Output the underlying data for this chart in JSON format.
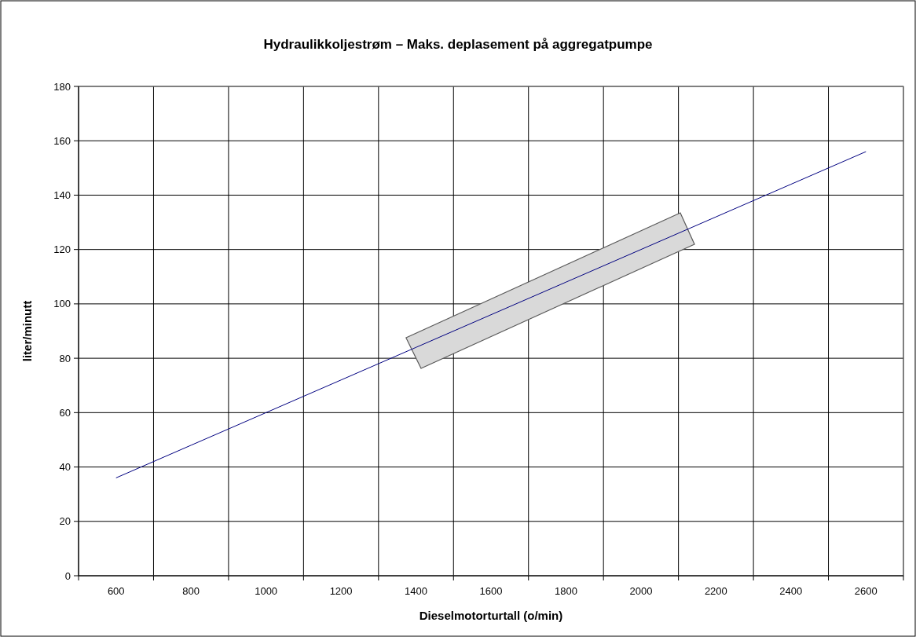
{
  "chart_data": {
    "type": "line",
    "title": "Hydraulikkoljestrøm – Maks. deplasement på aggregatpumpe",
    "xlabel": "Dieselmotorturtall (o/min)",
    "ylabel": "liter/minutt",
    "categories": [
      "600",
      "800",
      "1000",
      "1200",
      "1400",
      "1600",
      "1800",
      "2000",
      "2200",
      "2400",
      "2600"
    ],
    "series": [
      {
        "color": "#000080",
        "values": [
          36,
          48,
          60,
          72,
          84,
          96,
          108,
          120,
          132,
          144,
          156
        ]
      }
    ],
    "ylim": [
      0,
      180
    ],
    "yticks": [
      0,
      20,
      40,
      60,
      80,
      100,
      120,
      140,
      160,
      180
    ],
    "grid": true,
    "marker": "none",
    "line_style": "solid"
  }
}
